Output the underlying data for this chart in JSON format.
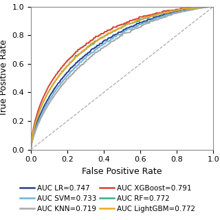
{
  "title": "",
  "xlabel": "False Positive Rate",
  "ylabel": "True’Positive Rate",
  "xlim": [
    0.0,
    1.0
  ],
  "ylim": [
    0.0,
    1.0
  ],
  "xticks": [
    0.0,
    0.2,
    0.4,
    0.6,
    0.8,
    1.0
  ],
  "yticks": [
    0.0,
    0.2,
    0.4,
    0.6,
    0.8,
    1.0
  ],
  "models": [
    {
      "label": "AUC LR=0.747",
      "auc": 0.747,
      "color": "#2c3e8c",
      "lw": 1.4,
      "seed": 11
    },
    {
      "label": "AUC SVM=0.733",
      "auc": 0.733,
      "color": "#6ab4d8",
      "lw": 1.4,
      "seed": 22
    },
    {
      "label": "AUC KNN=0.719",
      "auc": 0.719,
      "color": "#a8a8a8",
      "lw": 1.4,
      "seed": 33
    },
    {
      "label": "AUC XGBoost=0.791",
      "auc": 0.791,
      "color": "#d94030",
      "lw": 1.4,
      "seed": 44
    },
    {
      "label": "AUC RF=0.772",
      "auc": 0.772,
      "color": "#3aaa8a",
      "lw": 1.4,
      "seed": 55
    },
    {
      "label": "AUC LightGBM=0.772",
      "auc": 0.772,
      "color": "#e8a820",
      "lw": 1.4,
      "seed": 66
    }
  ],
  "diag_color": "#aaaaaa",
  "diag_lw": 0.9,
  "legend_fontsize": 7.5,
  "axis_label_fontsize": 9,
  "tick_fontsize": 8,
  "figsize": [
    3.2,
    3.2
  ],
  "dpi": 100
}
